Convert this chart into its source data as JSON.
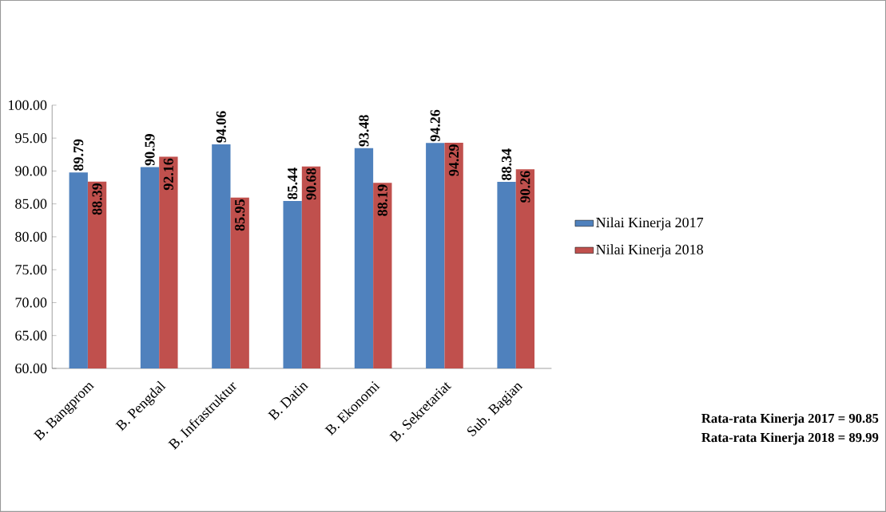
{
  "chart_data": {
    "type": "bar",
    "categories": [
      "B. Bangprom",
      "B. Pengdal",
      "B. Infrastruktur",
      "B. Datin",
      "B. Ekonomi",
      "B. Sekretariat",
      "Sub. Bagian"
    ],
    "series": [
      {
        "name": "Nilai Kinerja 2017",
        "color": "#4f81bd",
        "values": [
          89.79,
          90.59,
          94.06,
          85.44,
          93.48,
          94.26,
          88.34
        ]
      },
      {
        "name": "Nilai Kinerja 2018",
        "color": "#c0504d",
        "values": [
          88.39,
          92.16,
          85.95,
          90.68,
          88.19,
          94.29,
          90.26
        ]
      }
    ],
    "ylim": [
      60,
      100
    ],
    "yticks": [
      {
        "value": 60,
        "label": "60.00"
      },
      {
        "value": 65,
        "label": "65.00"
      },
      {
        "value": 70,
        "label": "70.00"
      },
      {
        "value": 75,
        "label": "75.00"
      },
      {
        "value": 80,
        "label": "80.00"
      },
      {
        "value": 85,
        "label": "85.00"
      },
      {
        "value": 90,
        "label": "90.00"
      },
      {
        "value": 95,
        "label": "95.00"
      },
      {
        "value": 100,
        "label": "100.00"
      }
    ],
    "data_labels": true,
    "legend": "right",
    "grid": false,
    "annotations": [
      "Rata-rata Kinerja 2017 = 90.85",
      "Rata-rata Kinerja 2018 = 89.99"
    ]
  }
}
